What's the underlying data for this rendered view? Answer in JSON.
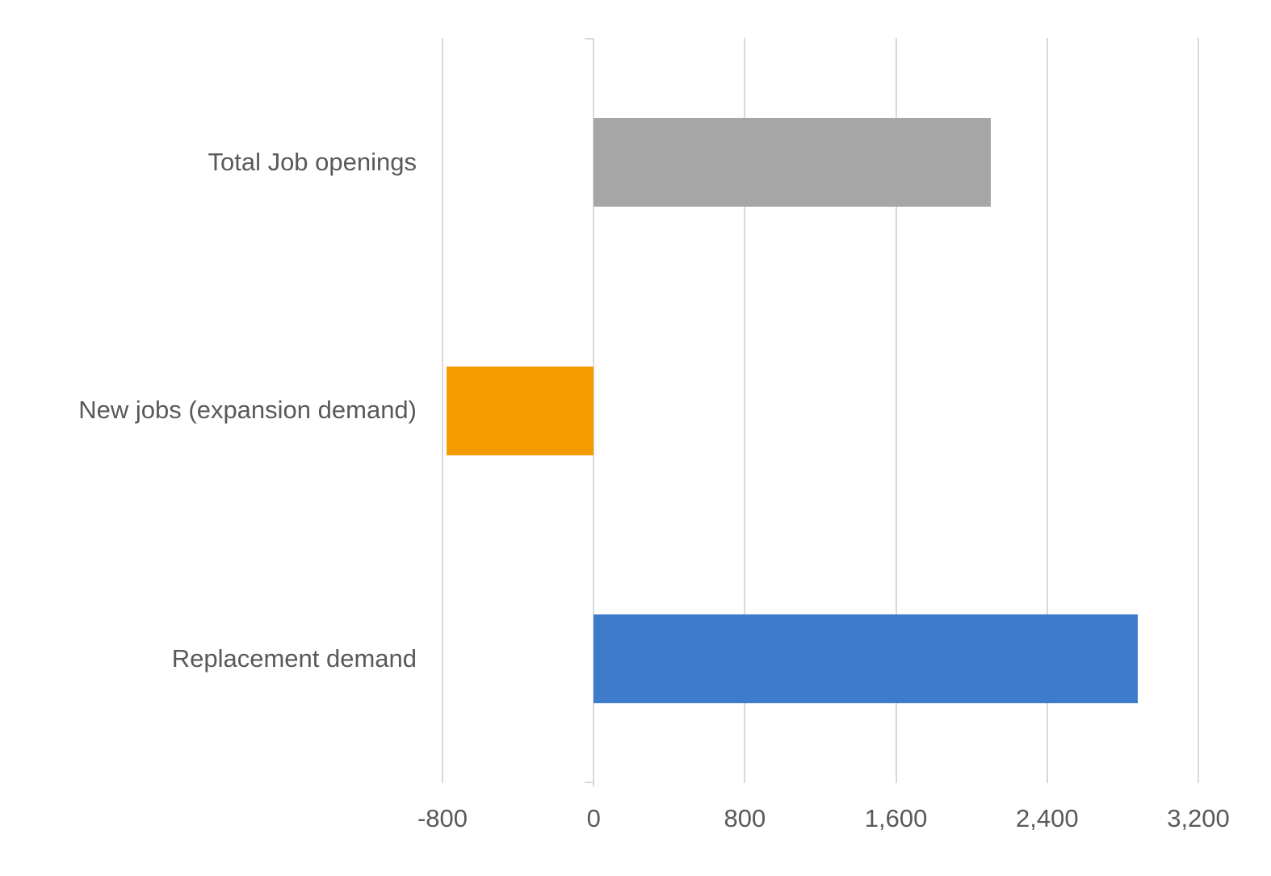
{
  "chart_data": {
    "type": "bar",
    "orientation": "horizontal",
    "title": "",
    "xlabel": "",
    "ylabel": "",
    "categories": [
      "Total Job openings",
      "New jobs (expansion demand)",
      "Replacement demand"
    ],
    "values": [
      2100,
      -780,
      2880
    ],
    "bar_colors": [
      "#A6A6A6",
      "#F59B00",
      "#3E7CCB"
    ],
    "xlim": [
      -800,
      3200
    ],
    "x_ticks": [
      -800,
      0,
      800,
      1600,
      2400,
      3200
    ],
    "x_tick_labels": [
      "-800",
      "0",
      "800",
      "1,600",
      "2,400",
      "3,200"
    ],
    "grid": true,
    "gridline_color": "#D9D9D9",
    "axis_text_color": "#595959",
    "background_color": "#FFFFFF",
    "legend_position": "none"
  }
}
